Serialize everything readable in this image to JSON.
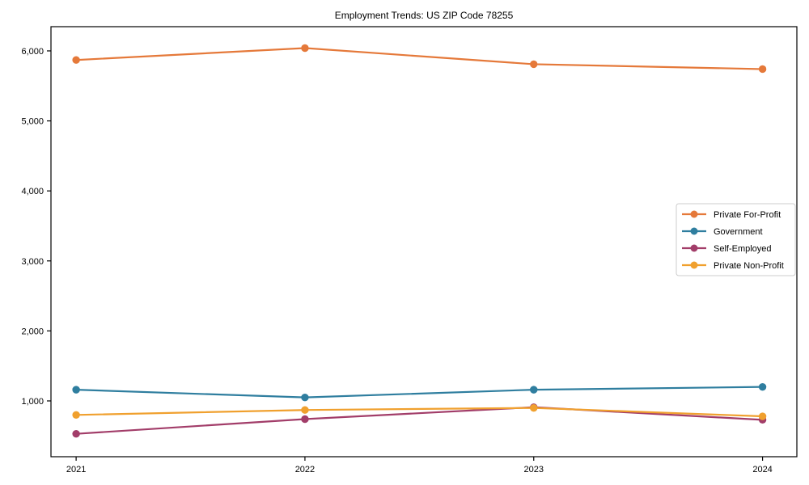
{
  "title": "Employment Trends: US ZIP Code 78255",
  "chart_data": {
    "type": "line",
    "title": "Employment Trends: US ZIP Code 78255",
    "xlabel": "",
    "ylabel": "",
    "x": [
      2021,
      2022,
      2023,
      2024
    ],
    "x_tick_labels": [
      "2021",
      "2022",
      "2023",
      "2024"
    ],
    "series": [
      {
        "name": "Private For-Profit",
        "color": "#e5793a",
        "values": [
          5870,
          6040,
          5810,
          5740
        ]
      },
      {
        "name": "Government",
        "color": "#2f7e9f",
        "values": [
          1160,
          1050,
          1160,
          1200
        ]
      },
      {
        "name": "Self-Employed",
        "color": "#a23d69",
        "values": [
          530,
          740,
          910,
          730
        ]
      },
      {
        "name": "Private Non-Profit",
        "color": "#f0a02e",
        "values": [
          800,
          870,
          900,
          780
        ]
      }
    ],
    "y_ticks": [
      1000,
      2000,
      3000,
      4000,
      5000,
      6000
    ],
    "y_tick_labels": [
      "1,000",
      "2,000",
      "3,000",
      "4,000",
      "5,000",
      "6,000"
    ],
    "xlim": [
      2020.89,
      2024.15
    ],
    "ylim": [
      203,
      6346
    ],
    "grid": false,
    "legend_position": "center-right",
    "legend_entries": [
      "Private For-Profit",
      "Government",
      "Self-Employed",
      "Private Non-Profit"
    ],
    "axis_color": "#000000",
    "legend_border_color": "#cccccc",
    "background_color": "#ffffff"
  }
}
